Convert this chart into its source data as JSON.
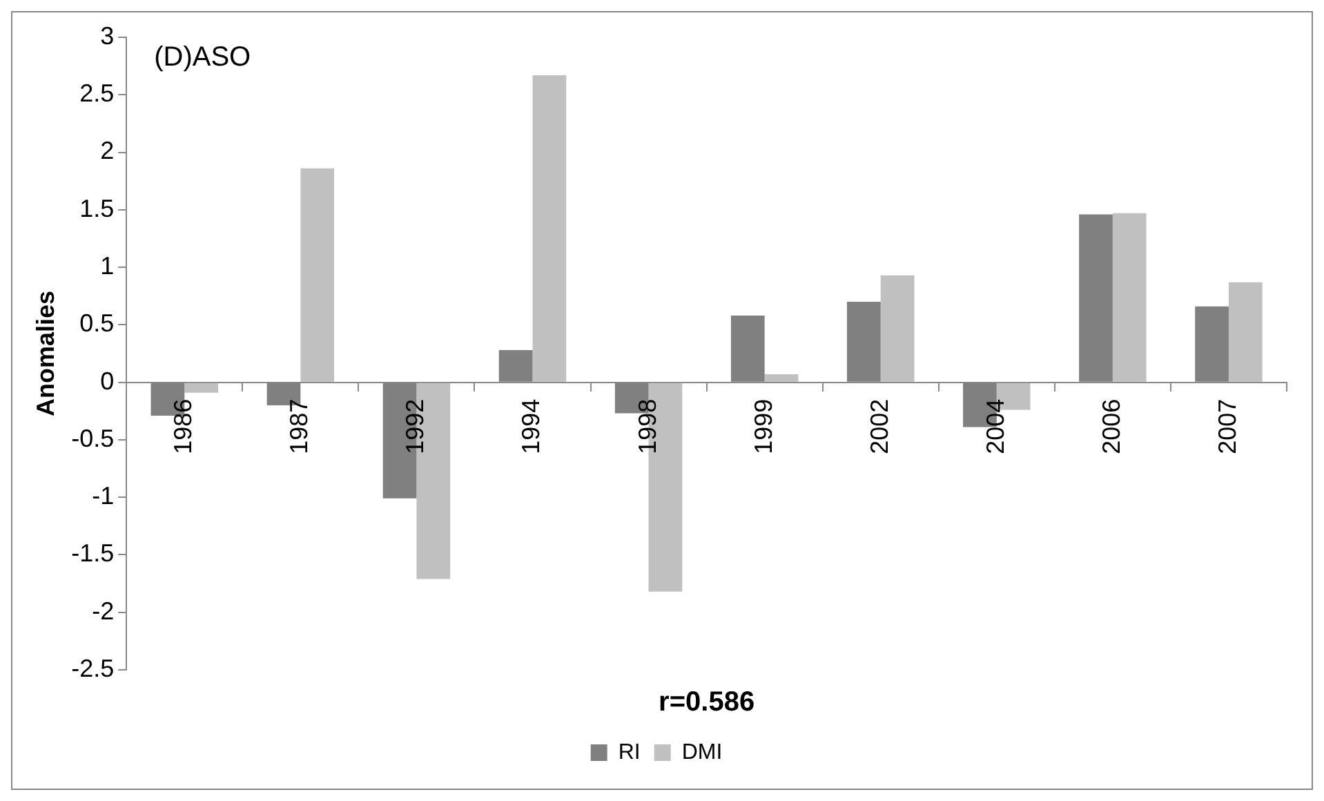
{
  "chart_data": {
    "type": "bar",
    "ylabel": "Anomalies",
    "annotations": [
      "(D)ASO",
      "r=0.586"
    ],
    "categories": [
      "1986",
      "1987",
      "1992",
      "1994",
      "1998",
      "1999",
      "2002",
      "2004",
      "2006",
      "2007"
    ],
    "series": [
      {
        "name": "RI",
        "color": "#808080",
        "values": [
          -0.29,
          -0.2,
          -1.01,
          0.28,
          -0.27,
          0.58,
          0.7,
          -0.39,
          1.46,
          0.66
        ]
      },
      {
        "name": "DMI",
        "color": "#c0c0c0",
        "values": [
          -0.09,
          1.86,
          -1.71,
          2.67,
          -1.82,
          0.07,
          0.93,
          -0.24,
          1.47,
          0.87
        ]
      }
    ],
    "ylim": [
      -2.5,
      3
    ],
    "yticks": [
      -2.5,
      -2,
      -1.5,
      -1,
      -0.5,
      0,
      0.5,
      1,
      1.5,
      2,
      2.5,
      3
    ],
    "grid": false,
    "legend": "bottom"
  }
}
